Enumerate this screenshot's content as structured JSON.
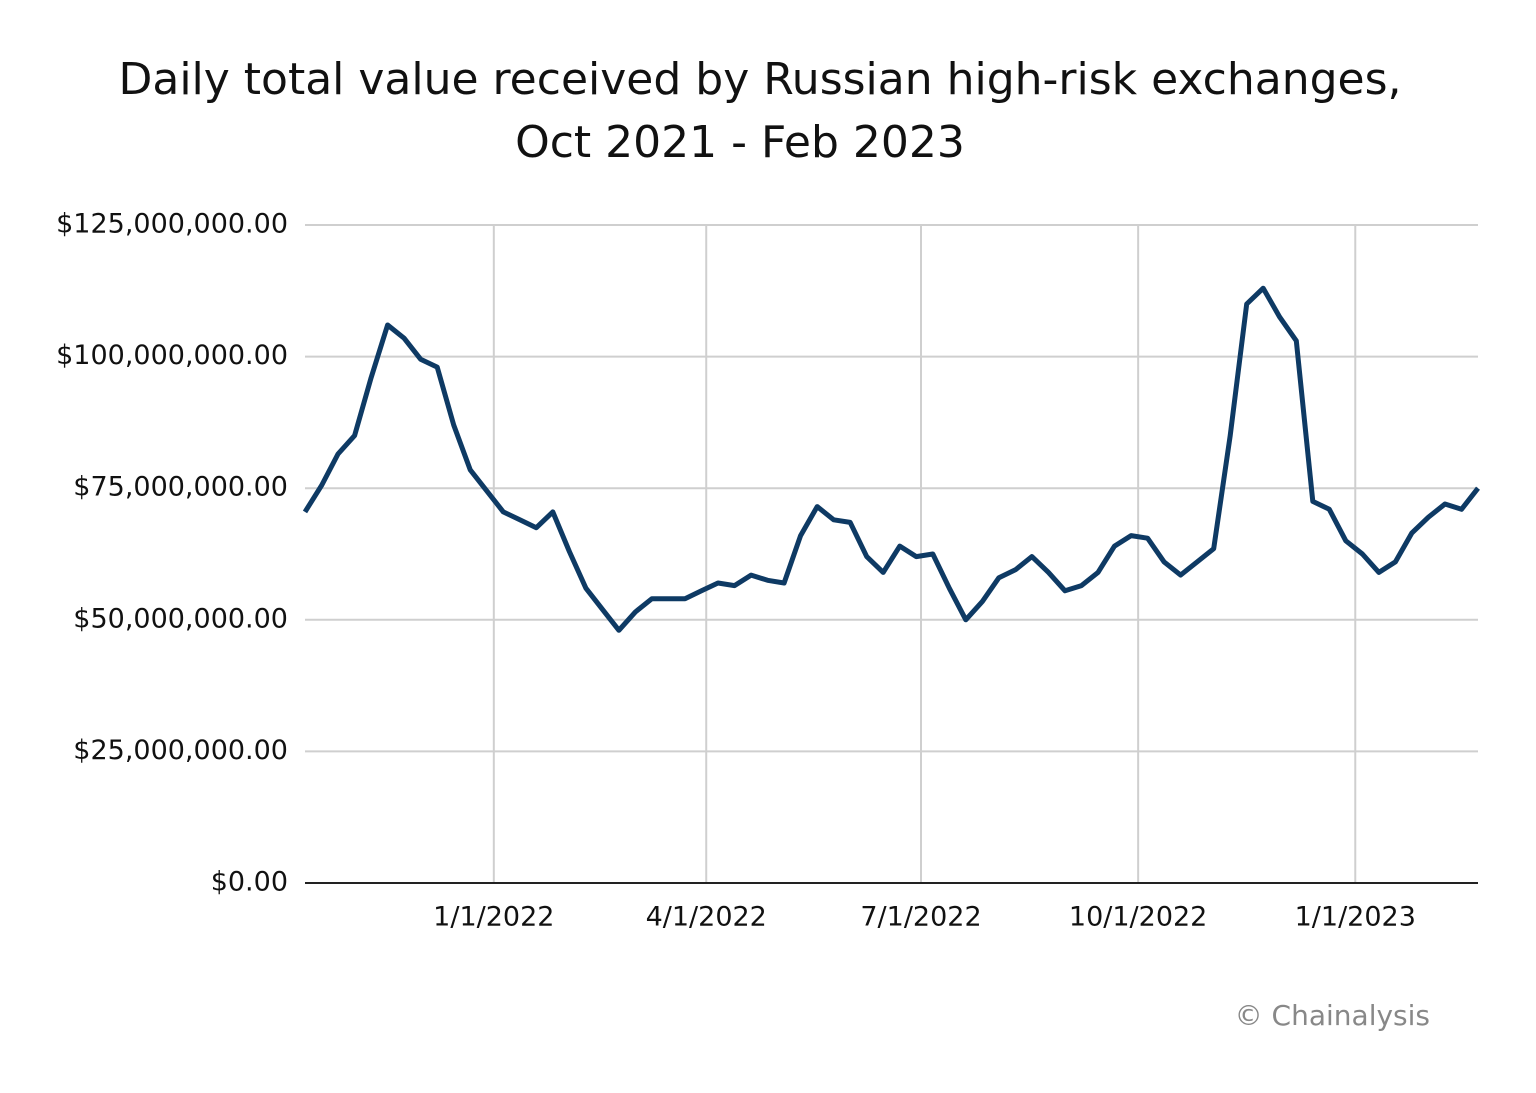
{
  "chart_data": {
    "type": "line",
    "title": [
      "Daily total value received by Russian high-risk exchanges,",
      "Oct 2021 - Feb 2023"
    ],
    "credit": "© Chainalysis",
    "x": [
      "10/13/2021",
      "10/20/2021",
      "10/27/2021",
      "11/3/2021",
      "11/10/2021",
      "11/17/2021",
      "11/24/2021",
      "12/1/2021",
      "12/8/2021",
      "12/15/2021",
      "12/22/2021",
      "12/29/2021",
      "1/5/2022",
      "1/12/2022",
      "1/19/2022",
      "1/26/2022",
      "2/2/2022",
      "2/9/2022",
      "2/16/2022",
      "2/23/2022",
      "3/2/2022",
      "3/9/2022",
      "3/16/2022",
      "3/23/2022",
      "3/30/2022",
      "4/6/2022",
      "4/13/2022",
      "4/20/2022",
      "4/27/2022",
      "5/4/2022",
      "5/11/2022",
      "5/18/2022",
      "5/25/2022",
      "6/1/2022",
      "6/8/2022",
      "6/15/2022",
      "6/22/2022",
      "6/29/2022",
      "7/6/2022",
      "7/13/2022",
      "7/20/2022",
      "7/27/2022",
      "8/3/2022",
      "8/10/2022",
      "8/17/2022",
      "8/24/2022",
      "8/31/2022",
      "9/7/2022",
      "9/14/2022",
      "9/21/2022",
      "9/28/2022",
      "10/5/2022",
      "10/12/2022",
      "10/19/2022",
      "10/26/2022",
      "11/2/2022",
      "11/9/2022",
      "11/16/2022",
      "11/23/2022",
      "11/30/2022",
      "12/7/2022",
      "12/14/2022",
      "12/21/2022",
      "12/28/2022",
      "1/4/2023",
      "1/11/2023",
      "1/18/2023",
      "1/25/2023",
      "2/1/2023",
      "2/8/2023",
      "2/15/2023",
      "2/22/2023"
    ],
    "series": [
      {
        "name": "Daily total value received",
        "color": "#0e3a64",
        "values": [
          70500000,
          75500000,
          81500000,
          85000000,
          96000000,
          106000000,
          103500000,
          99500000,
          98000000,
          87000000,
          78500000,
          74500000,
          70500000,
          69000000,
          67500000,
          70500000,
          63000000,
          56000000,
          52000000,
          48000000,
          51500000,
          54000000,
          54000000,
          54000000,
          55500000,
          57000000,
          56500000,
          58500000,
          57500000,
          57000000,
          66000000,
          71500000,
          69000000,
          68500000,
          62000000,
          59000000,
          64000000,
          62000000,
          62500000,
          56000000,
          50000000,
          53500000,
          58000000,
          59500000,
          62000000,
          59000000,
          55500000,
          56500000,
          59000000,
          64000000,
          66000000,
          65500000,
          61000000,
          58500000,
          61000000,
          63500000,
          85000000,
          110000000,
          113000000,
          107500000,
          103000000,
          72500000,
          71000000,
          65000000,
          62500000,
          59000000,
          61000000,
          66500000,
          69500000,
          72000000,
          71000000,
          75000000
        ]
      }
    ],
    "xlim": [
      "10/13/2021",
      "2/22/2023"
    ],
    "xticks": [
      "1/1/2022",
      "4/1/2022",
      "7/1/2022",
      "10/1/2022",
      "1/1/2023"
    ],
    "ylim": [
      0,
      125000000
    ],
    "yticks": [
      {
        "value": 0,
        "label": "$0.00"
      },
      {
        "value": 25000000,
        "label": "$25,000,000.00"
      },
      {
        "value": 50000000,
        "label": "$50,000,000.00"
      },
      {
        "value": 75000000,
        "label": "$75,000,000.00"
      },
      {
        "value": 100000000,
        "label": "$100,000,000.00"
      },
      {
        "value": 125000000,
        "label": "$125,000,000.00"
      }
    ],
    "grid": true
  }
}
